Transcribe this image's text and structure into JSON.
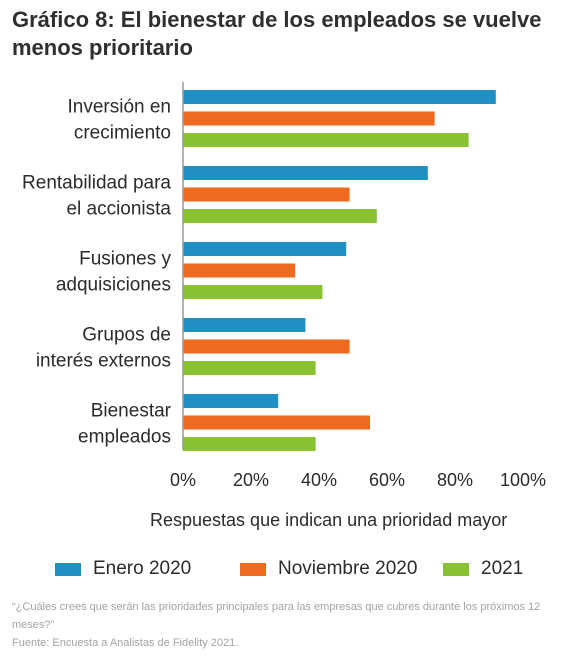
{
  "title": "Gráfico 8: El bienestar de los empleados se vuelve menos prioritario",
  "footnote": "“¿Cuáles crees que serán las prioridades principales para las empresas que cubres durante los próximos 12 meses?”",
  "source": "Fuente: Encuesta a Analistas de Fidelity 2021.",
  "colors": {
    "enero_2020": "#1f8fc4",
    "noviembre_2020": "#ee6a1f",
    "y2021": "#86c232",
    "axis": "#9a9a9a"
  },
  "chart_data": {
    "type": "bar",
    "orientation": "horizontal",
    "categories": [
      [
        "Inversión en",
        "crecimiento"
      ],
      [
        "Rentabilidad para",
        "el accionista"
      ],
      [
        "Fusiones y",
        "adquisiciones"
      ],
      [
        "Grupos de",
        "interés externos"
      ],
      [
        "Bienestar",
        "empleados"
      ]
    ],
    "series": [
      {
        "name": "Enero 2020",
        "color": "#1f8fc4",
        "values": [
          92,
          72,
          48,
          36,
          28
        ]
      },
      {
        "name": "Noviembre 2020",
        "color": "#ee6a1f",
        "values": [
          74,
          49,
          33,
          49,
          55
        ]
      },
      {
        "name": "2021",
        "color": "#86c232",
        "values": [
          84,
          57,
          41,
          39,
          39
        ]
      }
    ],
    "xlabel": "Respuestas que indican una prioridad mayor",
    "xlim": [
      0,
      100
    ],
    "xticks": [
      "0%",
      "20%",
      "40%",
      "60%",
      "80%",
      "100%"
    ],
    "grid": false,
    "legend_position": "bottom"
  }
}
